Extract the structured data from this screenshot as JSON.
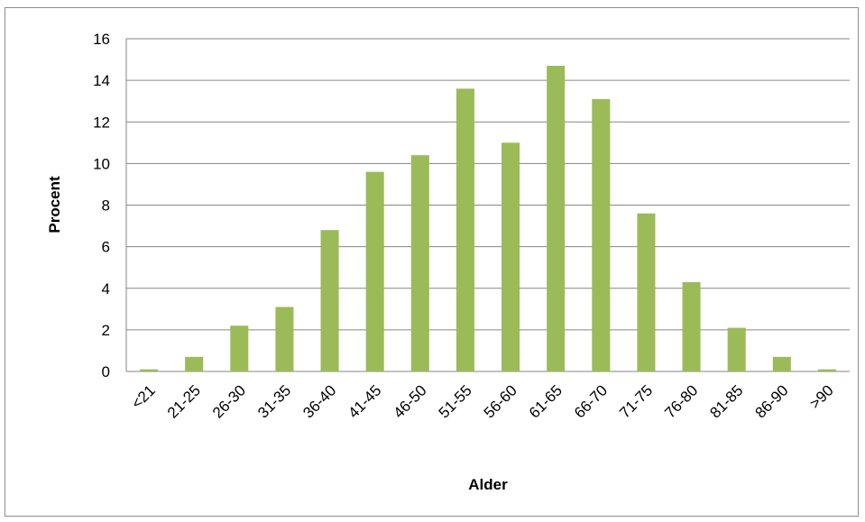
{
  "chart_data": {
    "type": "bar",
    "title": "",
    "xlabel": "Alder",
    "ylabel": "Procent",
    "categories": [
      "<21",
      "21-25",
      "26-30",
      "31-35",
      "36-40",
      "41-45",
      "46-50",
      "51-55",
      "56-60",
      "61-65",
      "66-70",
      "71-75",
      "76-80",
      "81-85",
      "86-90",
      ">90"
    ],
    "values": [
      0.1,
      0.7,
      2.2,
      3.1,
      6.8,
      9.6,
      10.4,
      13.6,
      11.0,
      14.7,
      13.1,
      7.6,
      4.3,
      2.1,
      0.7,
      0.1
    ],
    "ylim": [
      0,
      16
    ],
    "yticks": [
      0,
      2,
      4,
      6,
      8,
      10,
      12,
      14,
      16
    ],
    "grid": "horizontal",
    "legend": "none",
    "bar_color": "#9bbb59",
    "grid_color": "#868686"
  }
}
